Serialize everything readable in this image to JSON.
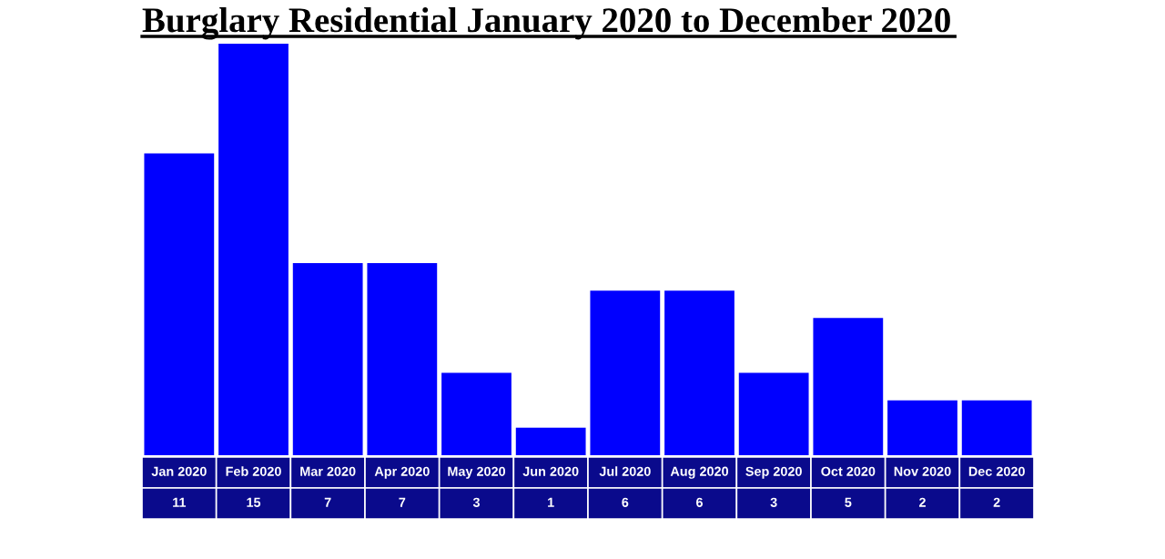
{
  "chart_data": {
    "type": "bar",
    "title": "Burglary Residential January 2020 to December 2020",
    "categories": [
      "Jan 2020",
      "Feb 2020",
      "Mar 2020",
      "Apr 2020",
      "May 2020",
      "Jun 2020",
      "Jul 2020",
      "Aug 2020",
      "Sep 2020",
      "Oct 2020",
      "Nov 2020",
      "Dec 2020"
    ],
    "values": [
      11,
      15,
      7,
      7,
      3,
      1,
      6,
      6,
      3,
      5,
      2,
      2
    ],
    "color": "#0000ff",
    "data_labels": true
  }
}
